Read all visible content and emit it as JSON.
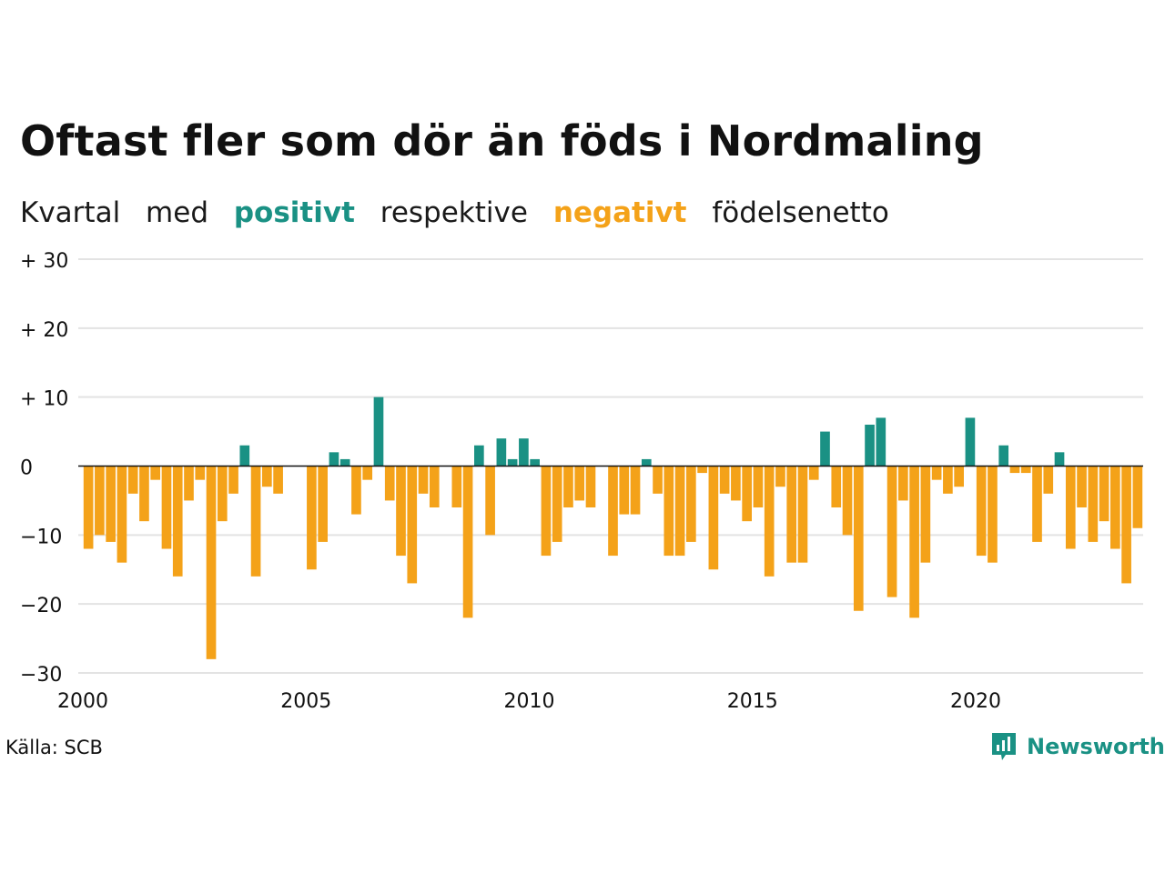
{
  "header": {
    "title": "Oftast fler som dör än föds i Nordmaling",
    "subtitle_parts": [
      "Kvartal",
      "med",
      "positivt",
      "respektive",
      "negativt",
      "födelsenetto"
    ]
  },
  "footer": {
    "source": "Källa: SCB",
    "brand": "Newsworthy"
  },
  "colors": {
    "positive": "#1a9184",
    "negative": "#f4a219",
    "grid": "#e3e3e3",
    "zero_line": "#111111"
  },
  "chart_data": {
    "type": "bar",
    "title": "Oftast fler som dör än föds i Nordmaling",
    "xlabel": "",
    "ylabel": "",
    "ylim": [
      -30,
      30
    ],
    "yticks": [
      30,
      20,
      10,
      0,
      -10,
      -20,
      -30
    ],
    "ytick_labels": [
      "+ 30",
      "+ 20",
      "+ 10",
      "0",
      "−10",
      "−20",
      "−30"
    ],
    "xticks": [
      2000,
      2005,
      2010,
      2015,
      2020
    ],
    "xlim": [
      2000,
      2023.75
    ],
    "x_start_year": 2000,
    "grid": true,
    "series": [
      {
        "values": [
          -12,
          -10,
          -11,
          -14,
          -4,
          -8,
          -2,
          -12,
          -16,
          -5,
          -2,
          -28,
          -8,
          -4,
          3,
          -16,
          -3,
          -4,
          0,
          0,
          -15,
          -11,
          2,
          1,
          -7,
          -2,
          10,
          -5,
          -13,
          -17,
          -4,
          -6,
          0,
          -6,
          -22,
          3,
          -10,
          4,
          1,
          4,
          1,
          -13,
          -11,
          -6,
          -5,
          -6,
          0,
          -13,
          -7,
          -7,
          1,
          -4,
          -13,
          -13,
          -11,
          -1,
          -15,
          -4,
          -5,
          -8,
          -6,
          -16,
          -3,
          -14,
          -14,
          -2,
          5,
          -6,
          -10,
          -21,
          6,
          7,
          -19,
          -5,
          -22,
          -14,
          -2,
          -4,
          -3,
          7,
          -13,
          -14,
          3,
          -1,
          -1,
          -11,
          -4,
          2,
          -12,
          -6,
          -11,
          -8,
          -12,
          -17,
          -9
        ]
      }
    ]
  }
}
